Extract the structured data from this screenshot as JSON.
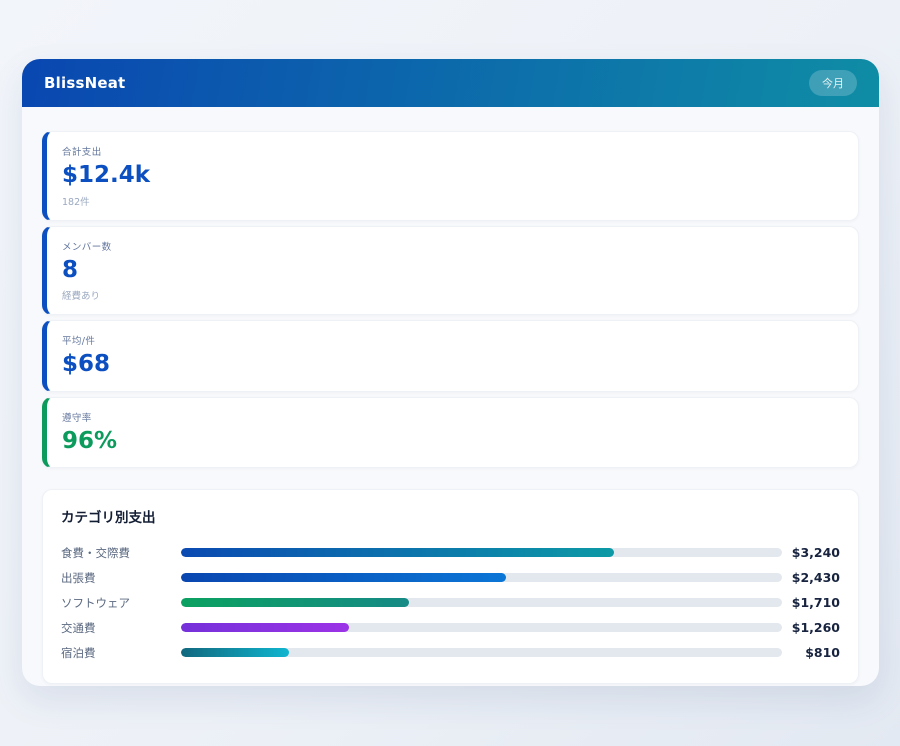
{
  "header": {
    "app_name": "BlissNeat",
    "badge_label": "今月",
    "gradient_from": "#0a47b1",
    "gradient_to": "#0f8da5"
  },
  "stats": [
    {
      "label": "合計支出",
      "value": "$12.4k",
      "sub": "182件",
      "accent": "#0b4fc0",
      "value_color": "#0b4fc0"
    },
    {
      "label": "メンバー数",
      "value": "8",
      "sub": "経費あり",
      "accent": "#0b4fc0",
      "value_color": "#0b4fc0"
    },
    {
      "label": "平均/件",
      "value": "$68",
      "sub": "",
      "accent": "#0b4fc0",
      "value_color": "#0b4fc0"
    },
    {
      "label": "遵守率",
      "value": "96%",
      "sub": "",
      "accent": "#0c9b5d",
      "value_color": "#0c9b5d"
    }
  ],
  "categories": {
    "title": "カテゴリ別支出",
    "rows": [
      {
        "label": "食費・交際費",
        "value": "$3,240",
        "amount": 3240,
        "percent": 72,
        "bar_from": "#0b4ab2",
        "bar_to": "#0d9aa6"
      },
      {
        "label": "出張費",
        "value": "$2,430",
        "amount": 2430,
        "percent": 54,
        "bar_from": "#0a46b0",
        "bar_to": "#0b76d6"
      },
      {
        "label": "ソフトウェア",
        "value": "$1,710",
        "amount": 1710,
        "percent": 38,
        "bar_from": "#0ba161",
        "bar_to": "#168a85"
      },
      {
        "label": "交通費",
        "value": "$1,260",
        "amount": 1260,
        "percent": 28,
        "bar_from": "#7531da",
        "bar_to": "#9c33e6"
      },
      {
        "label": "宿泊費",
        "value": "$810",
        "amount": 810,
        "percent": 18,
        "bar_from": "#11687e",
        "bar_to": "#10b5cf"
      }
    ]
  },
  "chart_data": {
    "type": "bar",
    "orientation": "horizontal",
    "title": "カテゴリ別支出",
    "categories": [
      "食費・交際費",
      "出張費",
      "ソフトウェア",
      "交通費",
      "宿泊費"
    ],
    "values": [
      3240,
      2430,
      1710,
      1260,
      810
    ],
    "value_labels": [
      "$3,240",
      "$2,430",
      "$1,710",
      "$1,260",
      "$810"
    ],
    "xlim": [
      0,
      4500
    ]
  }
}
